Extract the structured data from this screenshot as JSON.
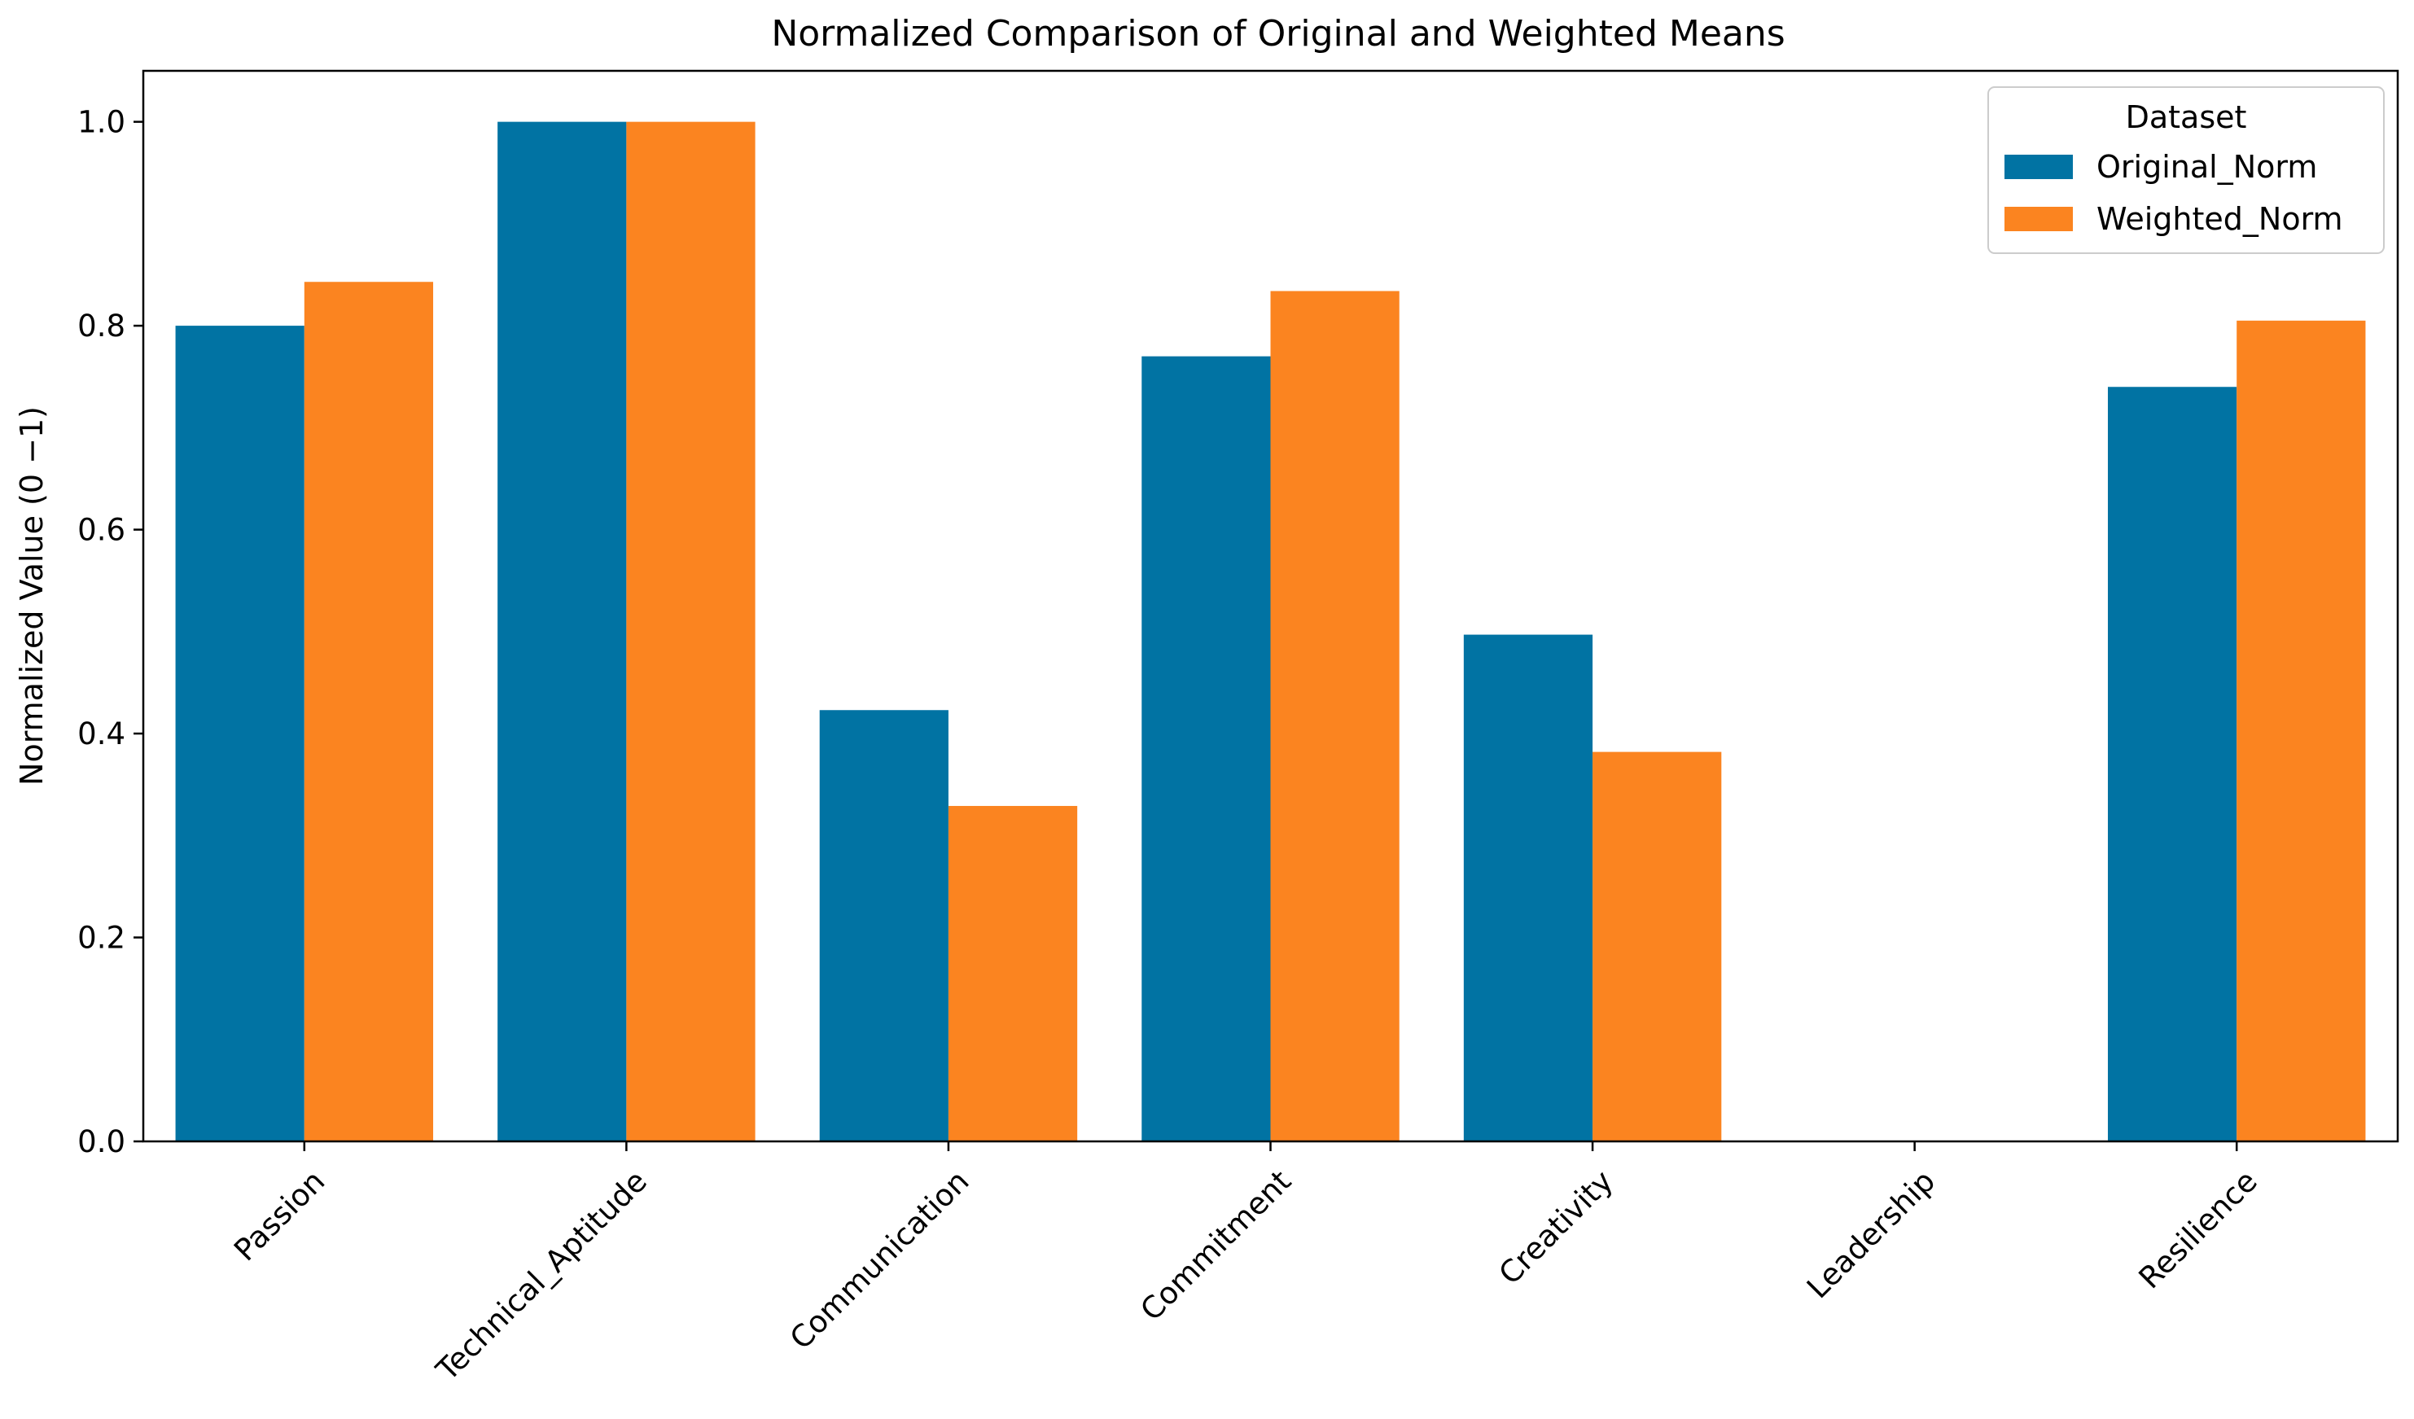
{
  "chart_data": {
    "type": "bar",
    "title": "Normalized Comparison of Original and Weighted Means",
    "xlabel": "",
    "ylabel": "Normalized Value (0 −1)",
    "categories": [
      "Passion",
      "Technical_Aptitude",
      "Communication",
      "Commitment",
      "Creativity",
      "Leadership",
      "Resilience"
    ],
    "series": [
      {
        "name": "Original_Norm",
        "color": "#0173a3",
        "values": [
          0.8,
          1.0,
          0.423,
          0.77,
          0.497,
          0.0,
          0.74
        ]
      },
      {
        "name": "Weighted_Norm",
        "color": "#fb8420",
        "values": [
          0.843,
          1.0,
          0.329,
          0.834,
          0.382,
          0.0,
          0.805
        ]
      }
    ],
    "ylim": [
      0,
      1.05
    ],
    "yticks": [
      0.0,
      0.2,
      0.4,
      0.6,
      0.8,
      1.0
    ],
    "ytick_labels": [
      "0.0",
      "0.2",
      "0.4",
      "0.6",
      "0.8",
      "1.0"
    ],
    "grid": false,
    "legend": {
      "title": "Dataset",
      "position": "top-right"
    }
  }
}
